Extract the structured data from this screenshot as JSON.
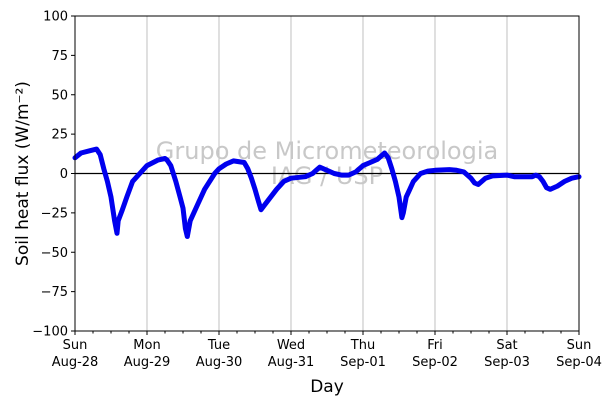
{
  "chart_data": {
    "type": "line",
    "xlabel": "Day",
    "ylabel": "Soil heat flux",
    "ylabel_unit": "(W/m⁻²)",
    "ylim": [
      -100,
      100
    ],
    "yticks": [
      -100,
      -75,
      -50,
      -25,
      0,
      25,
      50,
      75,
      100
    ],
    "xlim": [
      "2022-08-28 00:00",
      "2022-09-04 00:00"
    ],
    "xticks": [
      {
        "day": 0,
        "weekday": "Sun",
        "date": "Aug-28"
      },
      {
        "day": 1,
        "weekday": "Mon",
        "date": "Aug-29"
      },
      {
        "day": 2,
        "weekday": "Tue",
        "date": "Aug-30"
      },
      {
        "day": 3,
        "weekday": "Wed",
        "date": "Aug-31"
      },
      {
        "day": 4,
        "weekday": "Thu",
        "date": "Sep-01"
      },
      {
        "day": 5,
        "weekday": "Fri",
        "date": "Sep-02"
      },
      {
        "day": 6,
        "weekday": "Sat",
        "date": "Sep-03"
      },
      {
        "day": 7,
        "weekday": "Sun",
        "date": "Sep-04"
      }
    ],
    "grid": "vertical",
    "zero_line": true,
    "watermark": [
      "Grupo de Micrometeorologia",
      "IAG / USP"
    ],
    "series": [
      {
        "color": "#0000ee",
        "points": [
          [
            "2022-08-28 00:00",
            10
          ],
          [
            "2022-08-28 02:00",
            13
          ],
          [
            "2022-08-28 05:00",
            14.5
          ],
          [
            "2022-08-28 07:12",
            15.5
          ],
          [
            "2022-08-28 08:24",
            12
          ],
          [
            "2022-08-28 09:36",
            3
          ],
          [
            "2022-08-28 10:48",
            -5
          ],
          [
            "2022-08-28 12:00",
            -15
          ],
          [
            "2022-08-28 13:12",
            -30
          ],
          [
            "2022-08-28 14:00",
            -38
          ],
          [
            "2022-08-28 14:24",
            -30
          ],
          [
            "2022-08-28 15:36",
            -24
          ],
          [
            "2022-08-28 17:17",
            -15
          ],
          [
            "2022-08-28 19:12",
            -5
          ],
          [
            "2022-08-28 21:36",
            0
          ],
          [
            "2022-08-29 00:00",
            5
          ],
          [
            "2022-08-29 03:36",
            8.5
          ],
          [
            "2022-08-29 06:00",
            9.5
          ],
          [
            "2022-08-29 06:43",
            8.5
          ],
          [
            "2022-08-29 07:55",
            5
          ],
          [
            "2022-08-29 09:36",
            -5
          ],
          [
            "2022-08-29 11:02",
            -15
          ],
          [
            "2022-08-29 12:00",
            -22
          ],
          [
            "2022-08-29 12:48",
            -35
          ],
          [
            "2022-08-29 13:26",
            -40
          ],
          [
            "2022-08-29 14:24",
            -30
          ],
          [
            "2022-08-29 16:48",
            -20
          ],
          [
            "2022-08-29 19:12",
            -10
          ],
          [
            "2022-08-29 22:34",
            0
          ],
          [
            "2022-08-30 00:00",
            3
          ],
          [
            "2022-08-30 02:24",
            6
          ],
          [
            "2022-08-30 04:48",
            8
          ],
          [
            "2022-08-30 08:24",
            7
          ],
          [
            "2022-08-30 09:36",
            3
          ],
          [
            "2022-08-30 10:48",
            -3
          ],
          [
            "2022-08-30 12:00",
            -10
          ],
          [
            "2022-08-30 13:12",
            -18
          ],
          [
            "2022-08-30 14:00",
            -23
          ],
          [
            "2022-08-30 14:24",
            -22
          ],
          [
            "2022-08-30 16:48",
            -16
          ],
          [
            "2022-08-30 19:12",
            -10
          ],
          [
            "2022-08-30 21:36",
            -5
          ],
          [
            "2022-08-31 00:00",
            -3
          ],
          [
            "2022-08-31 04:48",
            -2
          ],
          [
            "2022-08-31 07:12",
            0
          ],
          [
            "2022-08-31 08:24",
            2
          ],
          [
            "2022-08-31 09:36",
            4
          ],
          [
            "2022-08-31 12:00",
            2
          ],
          [
            "2022-08-31 14:24",
            0
          ],
          [
            "2022-08-31 16:48",
            -1
          ],
          [
            "2022-08-31 19:12",
            -1
          ],
          [
            "2022-08-31 21:36",
            1
          ],
          [
            "2022-09-01 00:00",
            5
          ],
          [
            "2022-09-01 02:24",
            7
          ],
          [
            "2022-09-01 04:48",
            9
          ],
          [
            "2022-09-01 06:00",
            11
          ],
          [
            "2022-09-01 07:12",
            13
          ],
          [
            "2022-09-01 08:24",
            10
          ],
          [
            "2022-09-01 09:36",
            3
          ],
          [
            "2022-09-01 10:48",
            -5
          ],
          [
            "2022-09-01 12:00",
            -15
          ],
          [
            "2022-09-01 12:58",
            -28
          ],
          [
            "2022-09-01 13:26",
            -25
          ],
          [
            "2022-09-01 14:24",
            -15
          ],
          [
            "2022-09-01 15:36",
            -10
          ],
          [
            "2022-09-01 16:48",
            -5
          ],
          [
            "2022-09-01 19:12",
            0
          ],
          [
            "2022-09-01 21:36",
            1.5
          ],
          [
            "2022-09-02 00:00",
            2
          ],
          [
            "2022-09-02 04:48",
            2.5
          ],
          [
            "2022-09-02 07:12",
            2
          ],
          [
            "2022-09-02 09:36",
            1
          ],
          [
            "2022-09-02 12:00",
            -3
          ],
          [
            "2022-09-02 13:12",
            -6
          ],
          [
            "2022-09-02 14:24",
            -7
          ],
          [
            "2022-09-02 15:36",
            -5
          ],
          [
            "2022-09-02 16:48",
            -3
          ],
          [
            "2022-09-02 19:12",
            -1.5
          ],
          [
            "2022-09-03 00:00",
            -1
          ],
          [
            "2022-09-03 02:24",
            -2
          ],
          [
            "2022-09-03 06:00",
            -2
          ],
          [
            "2022-09-03 08:24",
            -2
          ],
          [
            "2022-09-03 09:36",
            -1
          ],
          [
            "2022-09-03 10:48",
            -2
          ],
          [
            "2022-09-03 12:00",
            -5
          ],
          [
            "2022-09-03 13:12",
            -9
          ],
          [
            "2022-09-03 14:24",
            -10
          ],
          [
            "2022-09-03 16:48",
            -8
          ],
          [
            "2022-09-03 19:12",
            -5
          ],
          [
            "2022-09-03 21:36",
            -3
          ],
          [
            "2022-09-04 00:00",
            -2
          ]
        ]
      }
    ]
  }
}
